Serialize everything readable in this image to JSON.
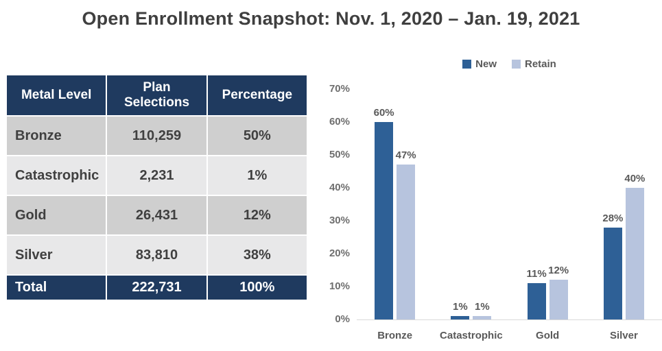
{
  "title": "Open Enrollment Snapshot: Nov. 1, 2020 – Jan. 19, 2021",
  "colors": {
    "navy": "#1F3A5F",
    "new_bar": "#2E6096",
    "retain_bar": "#B7C4DE",
    "row_dark": "#CFCFCF",
    "row_light": "#E8E8E9",
    "title_text": "#3F3F3F",
    "chart_text": "#595959",
    "axis_line": "#D9D9D9"
  },
  "table": {
    "headers": [
      "Metal Level",
      "Plan Selections",
      "Percentage"
    ],
    "rows": [
      {
        "metal_level": "Bronze",
        "plan_selections": "110,259",
        "percentage": "50%"
      },
      {
        "metal_level": "Catastrophic",
        "plan_selections": "2,231",
        "percentage": "1%"
      },
      {
        "metal_level": "Gold",
        "plan_selections": "26,431",
        "percentage": "12%"
      },
      {
        "metal_level": "Silver",
        "plan_selections": "83,810",
        "percentage": "38%"
      }
    ],
    "total_row": {
      "metal_level": "Total",
      "plan_selections": "222,731",
      "percentage": "100%"
    }
  },
  "chart_data": {
    "type": "bar",
    "title": "",
    "categories": [
      "Bronze",
      "Catastrophic",
      "Gold",
      "Silver"
    ],
    "series": [
      {
        "name": "New",
        "values": [
          60,
          1,
          11,
          28
        ],
        "color": "#2E6096"
      },
      {
        "name": "Retain",
        "values": [
          47,
          1,
          12,
          40
        ],
        "color": "#B7C4DE"
      }
    ],
    "value_labels": [
      [
        "60%",
        "1%",
        "11%",
        "28%"
      ],
      [
        "47%",
        "1%",
        "12%",
        "40%"
      ]
    ],
    "xlabel": "",
    "ylabel": "",
    "ylabel_ticks": [
      "70%",
      "60%",
      "50%",
      "40%",
      "30%",
      "20%",
      "10%",
      "0%"
    ],
    "ylim": [
      0,
      70
    ],
    "grid": false,
    "legend_position": "top"
  }
}
